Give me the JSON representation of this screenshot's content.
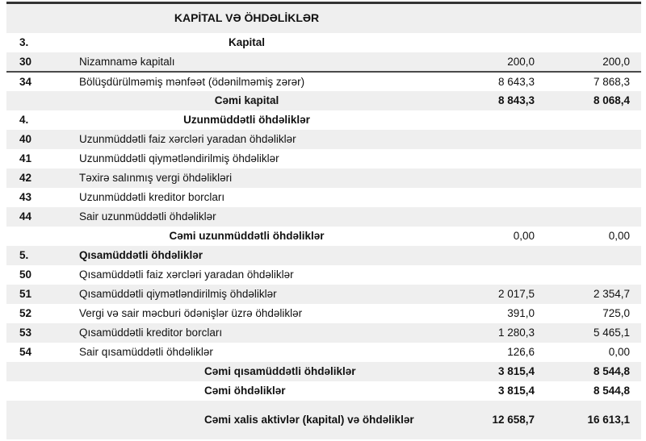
{
  "document": {
    "title": "KAPİTAL VƏ ÖHDƏLİKLƏR",
    "divider_color": "#4a4a4a",
    "top_rule_color": "#333333",
    "shade_color": "#efefef",
    "columns": {
      "row_number": "",
      "description": "",
      "value_current": "",
      "value_previous": ""
    },
    "rows": [
      {
        "num": "",
        "label": "KAPİTAL VƏ ÖHDƏLİKLƏR",
        "v1": "",
        "v2": "",
        "type": "table-header",
        "values_bold": false,
        "divider_below": false
      },
      {
        "num": "3.",
        "label": "Kapital",
        "v1": "",
        "v2": "",
        "type": "section-center",
        "values_bold": false,
        "divider_below": false
      },
      {
        "num": "30",
        "label": "Nizamnamə kapitalı",
        "v1": "200,0",
        "v2": "200,0",
        "type": "item",
        "values_bold": false,
        "divider_below": true
      },
      {
        "num": "34",
        "label": "Bölüşdürülməmiş mənfəət (ödənilməmiş zərər)",
        "v1": "8 643,3",
        "v2": "7 868,3",
        "type": "item",
        "values_bold": false,
        "divider_below": false
      },
      {
        "num": "",
        "label": "Cəmi kapital",
        "v1": "8 843,3",
        "v2": "8 068,4",
        "type": "total-center",
        "values_bold": true,
        "divider_below": false
      },
      {
        "num": "4.",
        "label": "Uzunmüddətli öhdəliklər",
        "v1": "",
        "v2": "",
        "type": "section-center",
        "values_bold": false,
        "divider_below": false
      },
      {
        "num": "40",
        "label": "Uzunmüddətli faiz xərcləri yaradan öhdəliklər",
        "v1": "",
        "v2": "",
        "type": "item",
        "values_bold": false,
        "divider_below": false
      },
      {
        "num": "41",
        "label": "Uzunmüddətli qiymətləndirilmiş öhdəliklər",
        "v1": "",
        "v2": "",
        "type": "item",
        "values_bold": false,
        "divider_below": false
      },
      {
        "num": "42",
        "label": "Təxirə salınmış vergi öhdəlikləri",
        "v1": "",
        "v2": "",
        "type": "item",
        "values_bold": false,
        "divider_below": false
      },
      {
        "num": "43",
        "label": "Uzunmüddətli kreditor borcları",
        "v1": "",
        "v2": "",
        "type": "item",
        "values_bold": false,
        "divider_below": false
      },
      {
        "num": "44",
        "label": "Sair uzunmüddətli öhdəliklər",
        "v1": "",
        "v2": "",
        "type": "item",
        "values_bold": false,
        "divider_below": false
      },
      {
        "num": "",
        "label": "Cəmi uzunmüddətli öhdəliklər",
        "v1": "0,00",
        "v2": "0,00",
        "type": "total-center",
        "values_bold": false,
        "divider_below": false
      },
      {
        "num": "5.",
        "label": "Qısamüddətli öhdəliklər",
        "v1": "",
        "v2": "",
        "type": "section-left",
        "values_bold": false,
        "divider_below": false
      },
      {
        "num": "50",
        "label": "Qısamüddətli faiz xərcləri yaradan öhdəliklər",
        "v1": "",
        "v2": "",
        "type": "item",
        "values_bold": false,
        "divider_below": false
      },
      {
        "num": "51",
        "label": "Qısamüddətli qiymətləndirilmiş öhdəliklər",
        "v1": "2 017,5",
        "v2": "2 354,7",
        "type": "item",
        "values_bold": false,
        "divider_below": false
      },
      {
        "num": "52",
        "label": "Vergi və sair məcburi ödənişlər üzrə öhdəliklər",
        "v1": "391,0",
        "v2": "725,0",
        "type": "item",
        "values_bold": false,
        "divider_below": false
      },
      {
        "num": "53",
        "label": "Qısamüddətli kreditor borcları",
        "v1": "1 280,3",
        "v2": "5 465,1",
        "type": "item",
        "values_bold": false,
        "divider_below": false
      },
      {
        "num": "54",
        "label": "Sair qısamüddətli öhdəliklər",
        "v1": "126,6",
        "v2": "0,00",
        "type": "item",
        "values_bold": false,
        "divider_below": false
      },
      {
        "num": "",
        "label": "Cəmi qısamüddətli öhdəliklər",
        "v1": "3 815,4",
        "v2": "8 544,8",
        "type": "total-indent",
        "values_bold": true,
        "divider_below": false
      },
      {
        "num": "",
        "label": "Cəmi öhdəliklər",
        "v1": "3 815,4",
        "v2": "8 544,8",
        "type": "total-indent",
        "values_bold": true,
        "divider_below": false
      },
      {
        "num": "",
        "label": "Cəmi xalis aktivlər (kapital) və öhdəliklər",
        "v1": "12 658,7",
        "v2": "16 613,1",
        "type": "total-indent",
        "values_bold": true,
        "divider_below": false,
        "grand": true
      }
    ]
  }
}
